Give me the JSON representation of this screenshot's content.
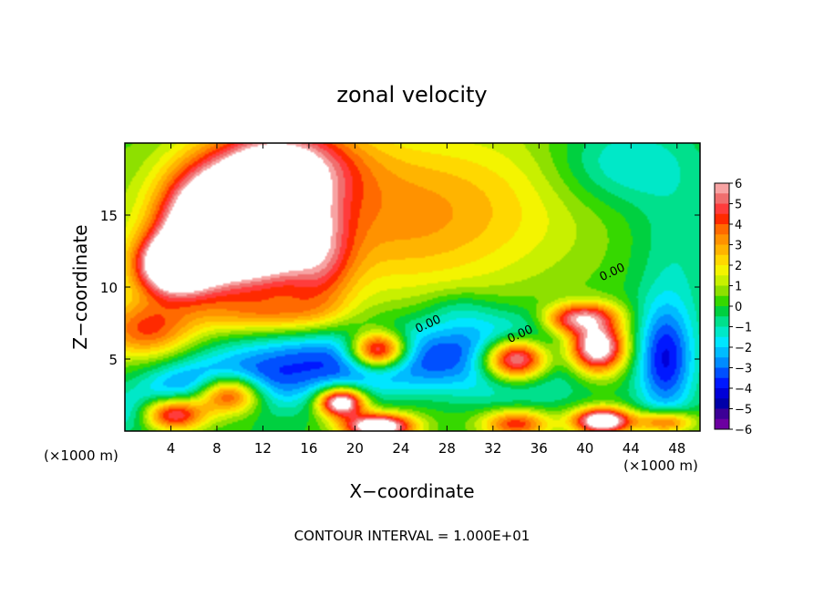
{
  "chart_data": {
    "type": "heatmap",
    "title": "zonal velocity",
    "xlabel": "X−coordinate",
    "ylabel": "Z−coordinate",
    "x_unit_left": "(×1000 m)",
    "x_unit_right": "(×1000 m)",
    "footer": "CONTOUR INTERVAL = 1.000E+01",
    "xlim": [
      0,
      50
    ],
    "ylim": [
      0,
      20
    ],
    "x_ticks": [
      4,
      8,
      12,
      16,
      20,
      24,
      28,
      32,
      36,
      40,
      44,
      48
    ],
    "y_ticks": [
      5,
      10,
      15
    ],
    "contour_labels": [
      {
        "text": "0.00",
        "x": 26.5,
        "y": 7.2
      },
      {
        "text": "0.00",
        "x": 34.5,
        "y": 6.5
      },
      {
        "text": "0.00",
        "x": 42.5,
        "y": 10.8
      }
    ],
    "colorbar": {
      "ticks": [
        "6",
        "5",
        "4",
        "3",
        "2",
        "1",
        "0",
        "−1",
        "−2",
        "−3",
        "−4",
        "−5",
        "−6"
      ],
      "levels": [
        {
          "min": 5.5,
          "max": 6.0,
          "color": "#f7a3a3"
        },
        {
          "min": 5.0,
          "max": 5.5,
          "color": "#f06e6e"
        },
        {
          "min": 4.5,
          "max": 5.0,
          "color": "#ff3c3c"
        },
        {
          "min": 4.0,
          "max": 4.5,
          "color": "#ff2a00"
        },
        {
          "min": 3.5,
          "max": 4.0,
          "color": "#ff6a00"
        },
        {
          "min": 3.0,
          "max": 3.5,
          "color": "#ff9200"
        },
        {
          "min": 2.5,
          "max": 3.0,
          "color": "#ffb400"
        },
        {
          "min": 2.0,
          "max": 2.5,
          "color": "#ffd800"
        },
        {
          "min": 1.5,
          "max": 2.0,
          "color": "#f4f400"
        },
        {
          "min": 1.0,
          "max": 1.5,
          "color": "#c8f000"
        },
        {
          "min": 0.5,
          "max": 1.0,
          "color": "#8ee000"
        },
        {
          "min": 0.0,
          "max": 0.5,
          "color": "#36d800"
        },
        {
          "min": -0.5,
          "max": 0.0,
          "color": "#00d040"
        },
        {
          "min": -1.0,
          "max": -0.5,
          "color": "#00e08c"
        },
        {
          "min": -1.5,
          "max": -1.0,
          "color": "#00e8c8"
        },
        {
          "min": -2.0,
          "max": -1.5,
          "color": "#00e6ff"
        },
        {
          "min": -2.5,
          "max": -2.0,
          "color": "#00bcff"
        },
        {
          "min": -3.0,
          "max": -2.5,
          "color": "#008cff"
        },
        {
          "min": -3.5,
          "max": -3.0,
          "color": "#0050ff"
        },
        {
          "min": -4.0,
          "max": -3.5,
          "color": "#0018ff"
        },
        {
          "min": -4.5,
          "max": -4.0,
          "color": "#0000d8"
        },
        {
          "min": -5.0,
          "max": -4.5,
          "color": "#0000a8"
        },
        {
          "min": -5.5,
          "max": -5.0,
          "color": "#3c0096"
        },
        {
          "min": -6.0,
          "max": -5.5,
          "color": "#6c00a0"
        }
      ]
    },
    "field_features": [
      {
        "x": 0,
        "y": 10,
        "sx": 10,
        "sy": 10,
        "value": 0.8
      },
      {
        "x": 24,
        "y": 15,
        "sx": 14,
        "sy": 6,
        "value": 3.2
      },
      {
        "x": 14,
        "y": 18.5,
        "sx": 6,
        "sy": 3,
        "value": 4.8
      },
      {
        "x": 38,
        "y": 18,
        "sx": 10,
        "sy": 5,
        "value": 0.4
      },
      {
        "x": 43,
        "y": 18.5,
        "sx": 6,
        "sy": 3,
        "value": -2.0
      },
      {
        "x": 48,
        "y": 13,
        "sx": 4,
        "sy": 5,
        "value": -1.0
      },
      {
        "x": 7,
        "y": 14,
        "sx": 4,
        "sy": 4,
        "value": 9.0
      },
      {
        "x": 12,
        "y": 14.5,
        "sx": 4,
        "sy": 4,
        "value": 9.0
      },
      {
        "x": 4,
        "y": 11.5,
        "sx": 3,
        "sy": 2,
        "value": 7.0
      },
      {
        "x": 17,
        "y": 12,
        "sx": 3,
        "sy": 4,
        "value": 3.0
      },
      {
        "x": 2,
        "y": 7,
        "sx": 4,
        "sy": 2,
        "value": 3.5
      },
      {
        "x": 20,
        "y": 5,
        "sx": 12,
        "sy": 2.5,
        "value": -4.0
      },
      {
        "x": 8,
        "y": 3,
        "sx": 6,
        "sy": 1.8,
        "value": -4.5
      },
      {
        "x": 2,
        "y": 1.2,
        "sx": 4,
        "sy": 1.4,
        "value": -3.5
      },
      {
        "x": 9,
        "y": 2.6,
        "sx": 3,
        "sy": 1.4,
        "value": 8.0
      },
      {
        "x": 4,
        "y": 1.2,
        "sx": 3,
        "sy": 1.2,
        "value": 8.0
      },
      {
        "x": 22,
        "y": 5.6,
        "sx": 2.5,
        "sy": 1.3,
        "value": 8.0
      },
      {
        "x": 18.8,
        "y": 2.0,
        "sx": 2,
        "sy": 1,
        "value": 8.0
      },
      {
        "x": 22,
        "y": 0.3,
        "sx": 3,
        "sy": 0.9,
        "value": 8.0
      },
      {
        "x": 32,
        "y": 4.5,
        "sx": 5,
        "sy": 2,
        "value": 2.0
      },
      {
        "x": 34,
        "y": 5.0,
        "sx": 3,
        "sy": 1.5,
        "value": 9.0
      },
      {
        "x": 33,
        "y": 5,
        "sx": 6,
        "sy": 2.6,
        "value": -4.5
      },
      {
        "x": 41,
        "y": 5.8,
        "sx": 2.5,
        "sy": 1.8,
        "value": 8.0
      },
      {
        "x": 40,
        "y": 8,
        "sx": 3,
        "sy": 1,
        "value": 4.0
      },
      {
        "x": 47,
        "y": 5,
        "sx": 2.5,
        "sy": 4,
        "value": -4.0
      },
      {
        "x": 26,
        "y": 2,
        "sx": 5,
        "sy": 2,
        "value": 0.5
      },
      {
        "x": 34,
        "y": 0.5,
        "sx": 3,
        "sy": 1,
        "value": 4.5
      },
      {
        "x": 41.5,
        "y": 0.7,
        "sx": 2.5,
        "sy": 0.9,
        "value": 8.0
      },
      {
        "x": 47,
        "y": 0.6,
        "sx": 2.5,
        "sy": 0.8,
        "value": 4.5
      },
      {
        "x": 13,
        "y": 8,
        "sx": 6,
        "sy": 1.5,
        "value": 2.5
      },
      {
        "x": 29,
        "y": 8.5,
        "sx": 3,
        "sy": 1.3,
        "value": -1.0
      },
      {
        "x": 38,
        "y": 7.5,
        "sx": 2,
        "sy": 1,
        "value": 2.0
      }
    ]
  }
}
